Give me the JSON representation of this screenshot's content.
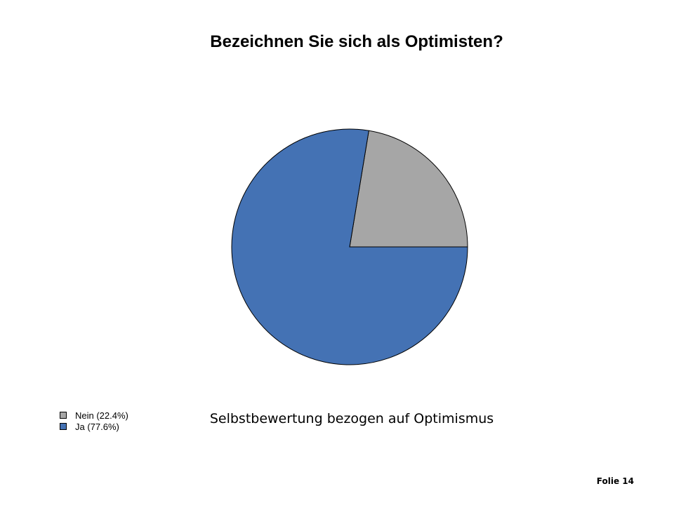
{
  "slide": {
    "title": "Bezeichnen Sie sich als Optimisten?",
    "subtitle": "Selbstbewertung bezogen auf Optimismus",
    "footer": "Folie 14"
  },
  "chart_data": {
    "type": "pie",
    "title": "Bezeichnen Sie sich als Optimisten?",
    "slices": [
      {
        "label": "Nein (22.4%)",
        "value": 22.4,
        "color": "#a6a6a6"
      },
      {
        "label": "Ja (77.6%)",
        "value": 77.6,
        "color": "#4472b4"
      }
    ],
    "start_angle_deg": 0,
    "direction": "counterclockwise",
    "legend_position": "bottom-left"
  }
}
